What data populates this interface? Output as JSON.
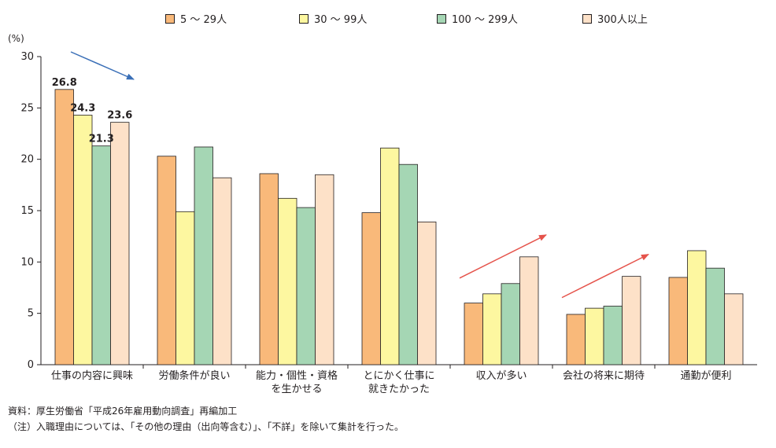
{
  "legend": [
    {
      "label": "5 ～ 29人",
      "color": "#f9b97a"
    },
    {
      "label": "30 ～ 99人",
      "color": "#fdf7a0"
    },
    {
      "label": "100 ～ 299人",
      "color": "#a5d6b4"
    },
    {
      "label": "300人以上",
      "color": "#fde1c8"
    }
  ],
  "unit_label": "(%)",
  "footnotes": {
    "source": "資料：厚生労働省「平成26年雇用動向調査」再編加工",
    "note": "（注）入職理由については、「その他の理由（出向等含む）」、「不詳」を除いて集計を行った。"
  },
  "chart_data": {
    "type": "bar",
    "categories": [
      [
        "仕事の内容に興味"
      ],
      [
        "労働条件が良い"
      ],
      [
        "能力・個性・資格",
        "を生かせる"
      ],
      [
        "とにかく仕事に",
        "就きたかった"
      ],
      [
        "収入が多い"
      ],
      [
        "会社の将来に期待"
      ],
      [
        "通勤が便利"
      ]
    ],
    "series": [
      {
        "name": "5 ～ 29人",
        "values": [
          26.8,
          20.3,
          18.6,
          14.8,
          6.0,
          4.9,
          8.5
        ]
      },
      {
        "name": "30 ～ 99人",
        "values": [
          24.3,
          14.9,
          16.2,
          21.1,
          6.9,
          5.5,
          11.1
        ]
      },
      {
        "name": "100 ～ 299人",
        "values": [
          21.3,
          21.2,
          15.3,
          19.5,
          7.9,
          5.7,
          9.4
        ]
      },
      {
        "name": "300人以上",
        "values": [
          23.6,
          18.2,
          18.5,
          13.9,
          10.5,
          8.6,
          6.9
        ]
      }
    ],
    "data_labels": {
      "category_index": 0,
      "values": [
        "26.8",
        "24.3",
        "21.3",
        "23.6"
      ]
    },
    "ylim": [
      0,
      30
    ],
    "yticks": [
      0,
      5,
      10,
      15,
      20,
      25,
      30
    ],
    "grid": false,
    "legend_position": "top",
    "arrows": [
      {
        "category_index": 0,
        "color": "#3a6fb7",
        "trend": "down"
      },
      {
        "category_index": 4,
        "color": "#e5534b",
        "trend": "up"
      },
      {
        "category_index": 5,
        "color": "#e5534b",
        "trend": "up"
      }
    ]
  }
}
